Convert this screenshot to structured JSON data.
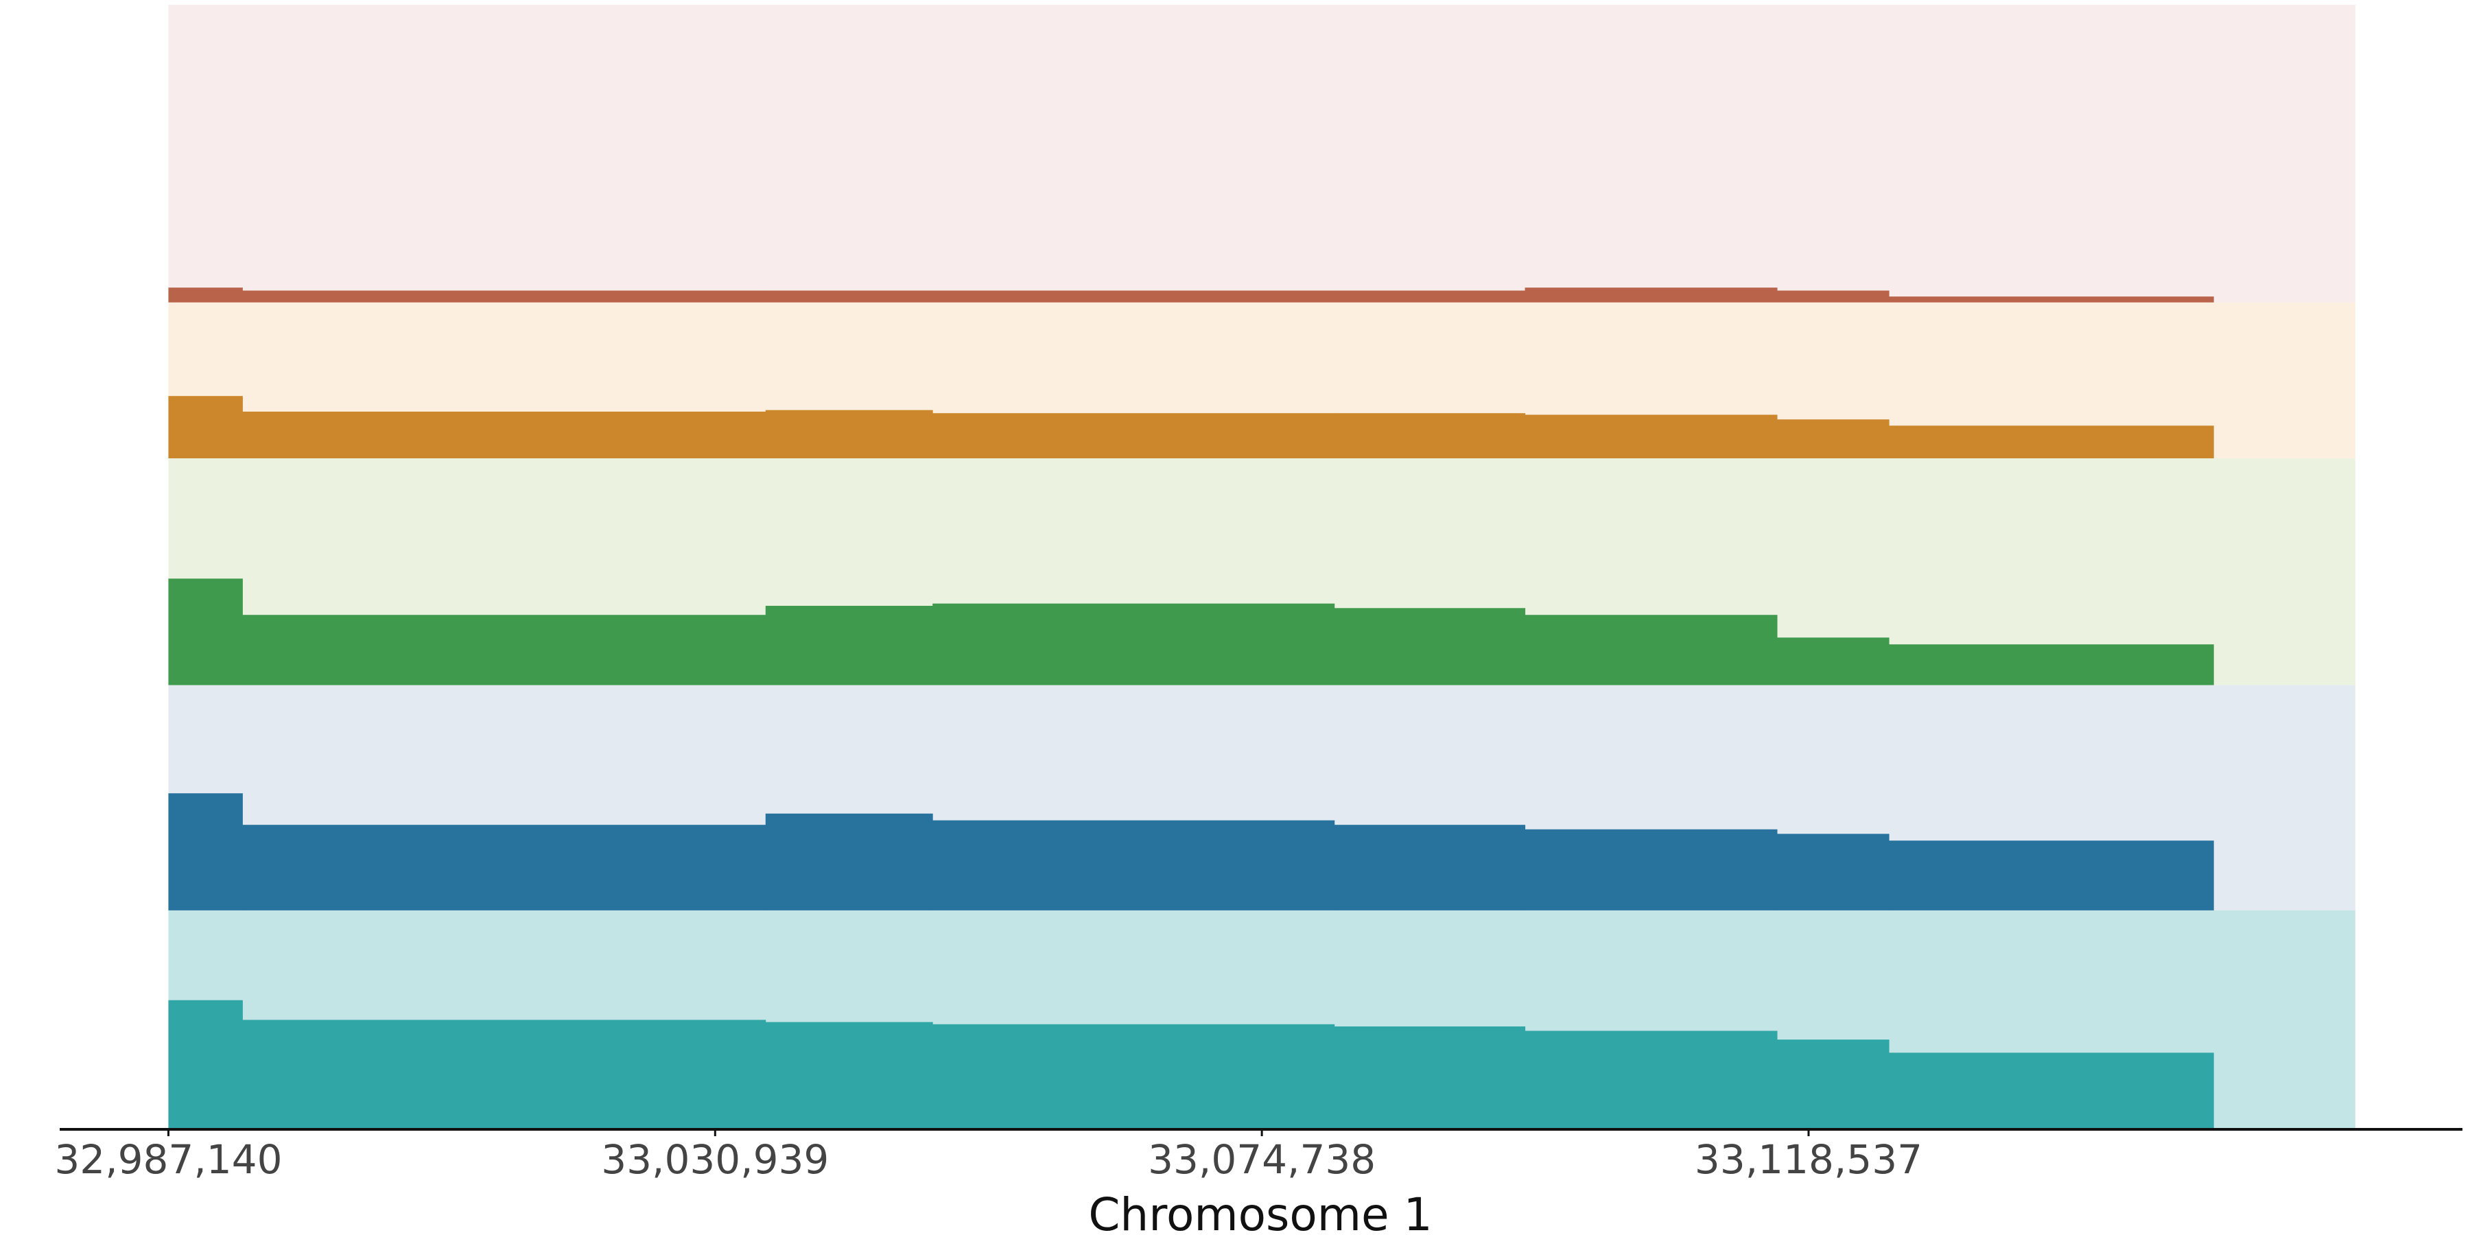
{
  "chart_data": {
    "type": "track",
    "x_label": "Chromosome 1",
    "xlim": [
      32978431,
      33170920
    ],
    "xticks": [
      {
        "value": 32987140,
        "label": "32,987,140"
      },
      {
        "value": 33030939,
        "label": "33,030,939"
      },
      {
        "value": 33074738,
        "label": "33,074,738"
      },
      {
        "value": 33118537,
        "label": "33,118,537"
      }
    ],
    "extent": [
      32987140,
      33162336
    ],
    "breaks": [
      32987140,
      32993072,
      33034978,
      33048357,
      33080543,
      33095815,
      33116010,
      33124972,
      33150978
    ],
    "series": [
      {
        "color": "#b9644a",
        "background": "#f8ecec",
        "values": [
          5,
          4,
          4,
          4,
          4,
          5,
          4,
          2
        ]
      },
      {
        "color": "#cc872c",
        "background": "#fcefdf",
        "values": [
          40,
          30,
          31,
          29,
          29,
          28,
          25,
          21
        ]
      },
      {
        "color": "#3f9a4e",
        "background": "#ebf2df",
        "values": [
          47,
          31,
          35,
          36,
          34,
          31,
          21,
          18
        ]
      },
      {
        "color": "#28729e",
        "background": "#e3eaf2",
        "values": [
          52,
          38,
          43,
          40,
          38,
          36,
          34,
          31
        ]
      },
      {
        "color": "#30a6a6",
        "background": "#c4e5e6",
        "values": [
          59,
          50,
          49,
          48,
          47,
          45,
          41,
          35
        ]
      }
    ]
  }
}
